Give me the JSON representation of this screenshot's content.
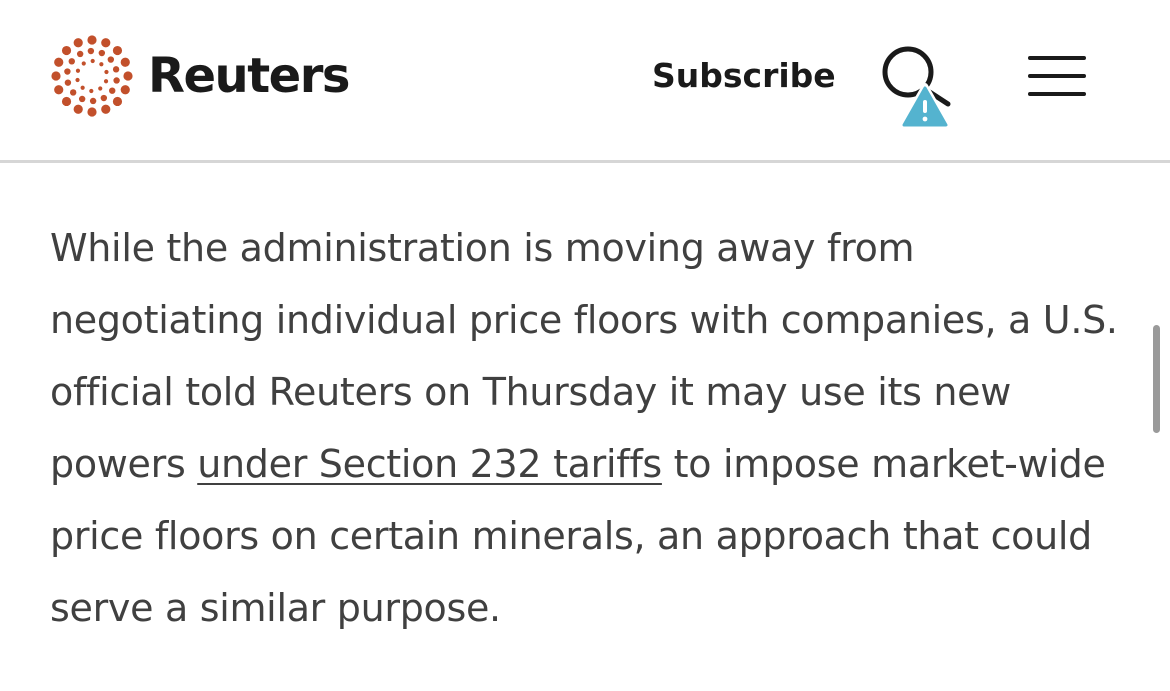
{
  "header": {
    "logo_text": "Reuters",
    "subscribe_label": "Subscribe",
    "brand_color": "#c2502b",
    "icons": {
      "search": "search-icon",
      "warning": "warning-icon",
      "menu": "hamburger-menu-icon"
    }
  },
  "article": {
    "paragraph_before_link": "While the administration is moving away from negotiating individual price floors with companies, a U.S. official told Reuters on Thursday it may use its new powers ",
    "link_text": "under Section 232 tariffs",
    "paragraph_after_link": " to impose market-wide price floors on certain minerals, an approach that could serve a similar purpose."
  }
}
